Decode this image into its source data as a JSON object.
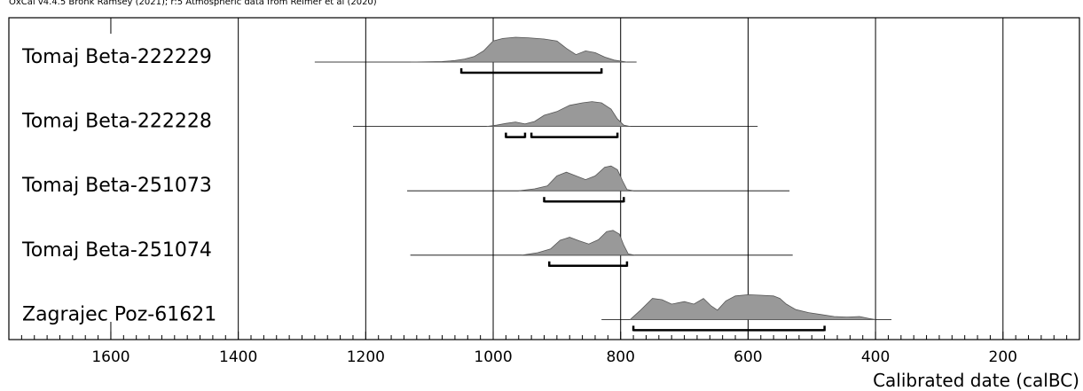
{
  "chart_data": {
    "type": "area",
    "header": "OxCal v4.4.5 Bronk Ramsey (2021); r:5 Atmospheric data from Reimer et al (2020)",
    "xlabel": "Calibrated date (calBC)",
    "xlim": [
      1760,
      80
    ],
    "x_ticks": [
      1600,
      1400,
      1200,
      1000,
      800,
      600,
      400,
      200
    ],
    "minor_tick_step": 20,
    "grid_x": [
      1400,
      1200,
      1000,
      800,
      600,
      400,
      200
    ],
    "series": [
      {
        "name": "Tomaj Beta-222229",
        "baseline_range": [
          1280,
          775
        ],
        "distribution": [
          [
            1130,
            0
          ],
          [
            1080,
            0.02
          ],
          [
            1060,
            0.06
          ],
          [
            1045,
            0.12
          ],
          [
            1030,
            0.22
          ],
          [
            1015,
            0.45
          ],
          [
            1000,
            0.85
          ],
          [
            985,
            0.95
          ],
          [
            965,
            1.0
          ],
          [
            945,
            0.98
          ],
          [
            920,
            0.93
          ],
          [
            900,
            0.85
          ],
          [
            885,
            0.55
          ],
          [
            870,
            0.3
          ],
          [
            855,
            0.45
          ],
          [
            840,
            0.38
          ],
          [
            825,
            0.2
          ],
          [
            810,
            0.08
          ],
          [
            790,
            0
          ]
        ],
        "range_bars": [
          [
            1050,
            830
          ]
        ]
      },
      {
        "name": "Tomaj Beta-222228",
        "baseline_range": [
          1220,
          585
        ],
        "distribution": [
          [
            1010,
            0
          ],
          [
            995,
            0.05
          ],
          [
            980,
            0.12
          ],
          [
            965,
            0.18
          ],
          [
            950,
            0.1
          ],
          [
            935,
            0.2
          ],
          [
            920,
            0.45
          ],
          [
            900,
            0.6
          ],
          [
            880,
            0.85
          ],
          [
            860,
            0.95
          ],
          [
            845,
            1.0
          ],
          [
            830,
            0.95
          ],
          [
            815,
            0.7
          ],
          [
            805,
            0.3
          ],
          [
            795,
            0.05
          ],
          [
            785,
            0
          ]
        ],
        "range_bars": [
          [
            980,
            950
          ],
          [
            940,
            805
          ]
        ]
      },
      {
        "name": "Tomaj Beta-251073",
        "baseline_range": [
          1135,
          535
        ],
        "distribution": [
          [
            960,
            0
          ],
          [
            935,
            0.08
          ],
          [
            915,
            0.2
          ],
          [
            900,
            0.6
          ],
          [
            885,
            0.75
          ],
          [
            870,
            0.6
          ],
          [
            855,
            0.45
          ],
          [
            840,
            0.6
          ],
          [
            825,
            0.95
          ],
          [
            815,
            1.0
          ],
          [
            805,
            0.85
          ],
          [
            797,
            0.4
          ],
          [
            790,
            0.05
          ],
          [
            780,
            0
          ]
        ],
        "range_bars": [
          [
            920,
            795
          ]
        ]
      },
      {
        "name": "Tomaj Beta-251074",
        "baseline_range": [
          1130,
          530
        ],
        "distribution": [
          [
            955,
            0
          ],
          [
            930,
            0.1
          ],
          [
            910,
            0.25
          ],
          [
            895,
            0.6
          ],
          [
            880,
            0.72
          ],
          [
            865,
            0.58
          ],
          [
            850,
            0.45
          ],
          [
            835,
            0.62
          ],
          [
            822,
            0.95
          ],
          [
            812,
            1.0
          ],
          [
            802,
            0.85
          ],
          [
            795,
            0.4
          ],
          [
            788,
            0.05
          ],
          [
            778,
            0
          ]
        ],
        "range_bars": [
          [
            912,
            790
          ]
        ]
      },
      {
        "name": "Zagrajec Poz-61621",
        "baseline_range": [
          830,
          375
        ],
        "distribution": [
          [
            785,
            0
          ],
          [
            770,
            0.35
          ],
          [
            750,
            0.85
          ],
          [
            735,
            0.8
          ],
          [
            720,
            0.62
          ],
          [
            700,
            0.72
          ],
          [
            685,
            0.62
          ],
          [
            670,
            0.85
          ],
          [
            658,
            0.55
          ],
          [
            648,
            0.38
          ],
          [
            635,
            0.75
          ],
          [
            620,
            0.95
          ],
          [
            600,
            1.0
          ],
          [
            580,
            0.98
          ],
          [
            560,
            0.95
          ],
          [
            550,
            0.85
          ],
          [
            540,
            0.62
          ],
          [
            525,
            0.4
          ],
          [
            505,
            0.28
          ],
          [
            485,
            0.2
          ],
          [
            465,
            0.12
          ],
          [
            445,
            0.1
          ],
          [
            425,
            0.12
          ],
          [
            410,
            0.04
          ],
          [
            400,
            0
          ]
        ],
        "range_bars": [
          [
            780,
            480
          ]
        ]
      }
    ]
  }
}
